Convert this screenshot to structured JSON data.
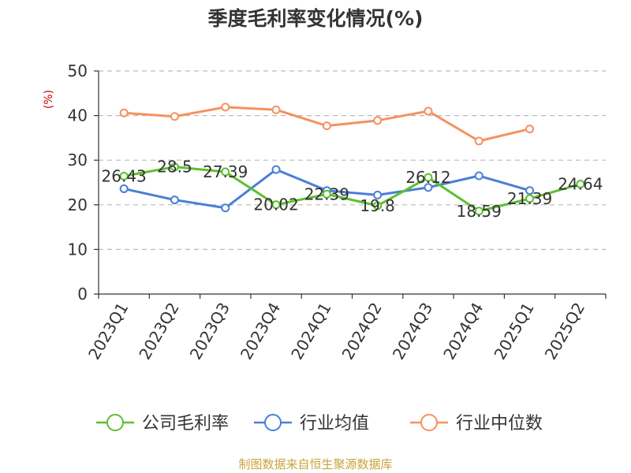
{
  "chart_data": {
    "type": "line",
    "title": "季度毛利率变化情况(%)",
    "ylabel": "(%)",
    "xlabel": "",
    "ylim": [
      0,
      50
    ],
    "yticks": [
      0,
      10,
      20,
      30,
      40,
      50
    ],
    "grid": true,
    "legend_position": "bottom",
    "categories": [
      "2023Q1",
      "2023Q2",
      "2023Q3",
      "2023Q4",
      "2024Q1",
      "2024Q2",
      "2024Q3",
      "2024Q4",
      "2025Q1",
      "2025Q2"
    ],
    "series": [
      {
        "name": "公司毛利率",
        "color": "#5cc02f",
        "values": [
          26.43,
          28.5,
          27.39,
          20.02,
          22.39,
          19.8,
          26.12,
          18.59,
          21.39,
          24.64
        ],
        "labels": [
          "26.43",
          "28.5",
          "27.39",
          "20.02",
          "22.39",
          "19.8",
          "26.12",
          "18.59",
          "21.39",
          "24.64"
        ]
      },
      {
        "name": "行业均值",
        "color": "#4a7fd6",
        "values": [
          23.6,
          21.1,
          19.3,
          27.9,
          23.2,
          22.2,
          23.9,
          26.5,
          23.2,
          null
        ]
      },
      {
        "name": "行业中位数",
        "color": "#f59160",
        "values": [
          40.6,
          39.8,
          41.9,
          41.3,
          37.7,
          38.9,
          41.0,
          34.3,
          37.0,
          null
        ]
      }
    ]
  },
  "footer": {
    "source": "制图数据来自恒生聚源数据库"
  }
}
